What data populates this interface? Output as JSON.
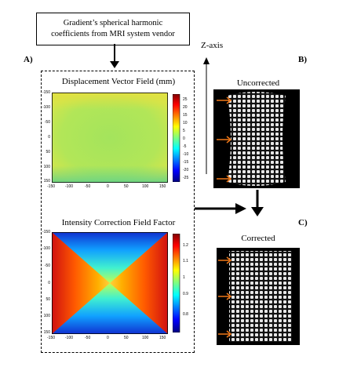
{
  "source_box": {
    "line1": "Gradient’s spherical harmonic",
    "line2": "coefficients from MRI system vendor"
  },
  "labels": {
    "a": "A)",
    "b": "B)",
    "c": "C)"
  },
  "z_axis_label": "Z-axis",
  "displacement_panel": {
    "title": "Displacement Vector Field (mm)",
    "y_ticks": [
      "-150",
      "-100",
      "-50",
      "0",
      "50",
      "100",
      "150"
    ],
    "x_ticks": [
      "-150",
      "-100",
      "-50",
      "0",
      "50",
      "100",
      "150"
    ],
    "colorbar_ticks": [
      "25",
      "20",
      "15",
      "10",
      "5",
      "0",
      "-5",
      "-10",
      "-15",
      "-20",
      "-25"
    ]
  },
  "intensity_panel": {
    "title": "Intensity Correction Field Factor",
    "y_ticks": [
      "-150",
      "-100",
      "-50",
      "0",
      "50",
      "100",
      "150"
    ],
    "x_ticks": [
      "-150",
      "-100",
      "-50",
      "0",
      "50",
      "100",
      "150"
    ],
    "colorbar_ticks": [
      "1.2",
      "1.1",
      "1",
      "0.9",
      "0.8"
    ]
  },
  "uncorrected_image": {
    "title": "Uncorrected"
  },
  "corrected_image": {
    "title": "Corrected"
  },
  "colors": {
    "arrow_orange": "#f07818",
    "phantom_dot": "#e6e6e6"
  }
}
